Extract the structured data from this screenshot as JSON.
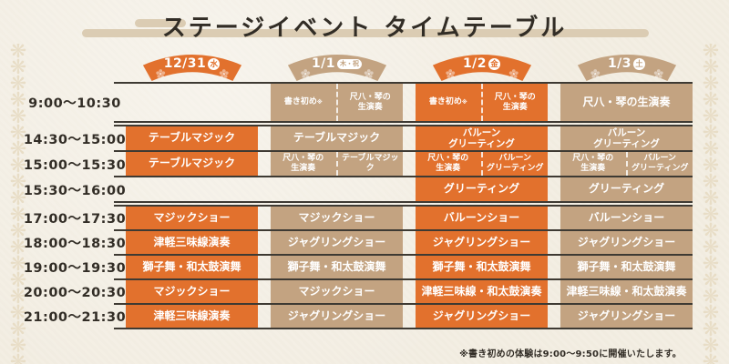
{
  "title": "ステージイベント タイムテーブル",
  "footnote": "※書き初めの体験は9:00～9:50に開催いたします。",
  "pattern_glyph": "❋",
  "colors": {
    "orange": "#e2712d",
    "tan": "#c3a381",
    "background": "#f3eee3",
    "line": "#3e3a33",
    "ink": "#322d26",
    "bar": "#dbccb3",
    "pattern": "#e8ddc6"
  },
  "columns": [
    {
      "date": "12/31",
      "day": "水",
      "day_style": "circle",
      "color": "orange"
    },
    {
      "date": "1/1",
      "day": "木・祝",
      "day_style": "pill",
      "color": "tan"
    },
    {
      "date": "1/2",
      "day": "金",
      "day_style": "circle",
      "color": "orange"
    },
    {
      "date": "1/3",
      "day": "土",
      "day_style": "circle",
      "color": "tan"
    }
  ],
  "rows": [
    {
      "time": "9:00～10:30",
      "cells": [
        null,
        {
          "split": [
            {
              "label": "書き初め",
              "mark": "※"
            },
            {
              "label": "尺八・琴の\n生演奏"
            }
          ]
        },
        {
          "split": [
            {
              "label": "書き初め",
              "mark": "※"
            },
            {
              "label": "尺八・琴の\n生演奏"
            }
          ]
        },
        {
          "label": "尺八・琴の生演奏"
        }
      ]
    },
    {
      "time": "14:30～15:00",
      "cells": [
        {
          "label": "テーブルマジック"
        },
        {
          "label": "テーブルマジック"
        },
        {
          "label": "バルーン\nグリーティング"
        },
        {
          "label": "バルーン\nグリーティング"
        }
      ]
    },
    {
      "time": "15:00～15:30",
      "cells": [
        {
          "label": "テーブルマジック"
        },
        {
          "split": [
            {
              "label": "尺八・琴の\n生演奏"
            },
            {
              "label": "テーブルマジック"
            }
          ]
        },
        {
          "split": [
            {
              "label": "尺八・琴の\n生演奏"
            },
            {
              "label": "バルーン\nグリーティング"
            }
          ]
        },
        {
          "split": [
            {
              "label": "尺八・琴の\n生演奏"
            },
            {
              "label": "バルーン\nグリーティング"
            }
          ]
        }
      ]
    },
    {
      "time": "15:30～16:00",
      "cells": [
        null,
        null,
        {
          "label": "グリーティング"
        },
        {
          "label": "グリーティング"
        }
      ]
    },
    {
      "time": "17:00～17:30",
      "cells": [
        {
          "label": "マジックショー"
        },
        {
          "label": "マジックショー"
        },
        {
          "label": "バルーンショー"
        },
        {
          "label": "バルーンショー"
        }
      ]
    },
    {
      "time": "18:00～18:30",
      "cells": [
        {
          "label": "津軽三味線演奏"
        },
        {
          "label": "ジャグリングショー"
        },
        {
          "label": "ジャグリングショー"
        },
        {
          "label": "ジャグリングショー"
        }
      ]
    },
    {
      "time": "19:00～19:30",
      "cells": [
        {
          "label": "獅子舞・和太鼓演舞"
        },
        {
          "label": "獅子舞・和太鼓演舞"
        },
        {
          "label": "獅子舞・和太鼓演舞"
        },
        {
          "label": "獅子舞・和太鼓演舞"
        }
      ]
    },
    {
      "time": "20:00～20:30",
      "cells": [
        {
          "label": "マジックショー"
        },
        {
          "label": "マジックショー"
        },
        {
          "label": "津軽三味線・和太鼓演奏"
        },
        {
          "label": "津軽三味線・和太鼓演奏"
        }
      ]
    },
    {
      "time": "21:00～21:30",
      "cells": [
        {
          "label": "津軽三味線演奏"
        },
        {
          "label": "ジャグリングショー"
        },
        {
          "label": "ジャグリングショー"
        },
        {
          "label": "ジャグリングショー"
        }
      ]
    }
  ],
  "double_separator_after_rows": [
    0,
    3
  ]
}
